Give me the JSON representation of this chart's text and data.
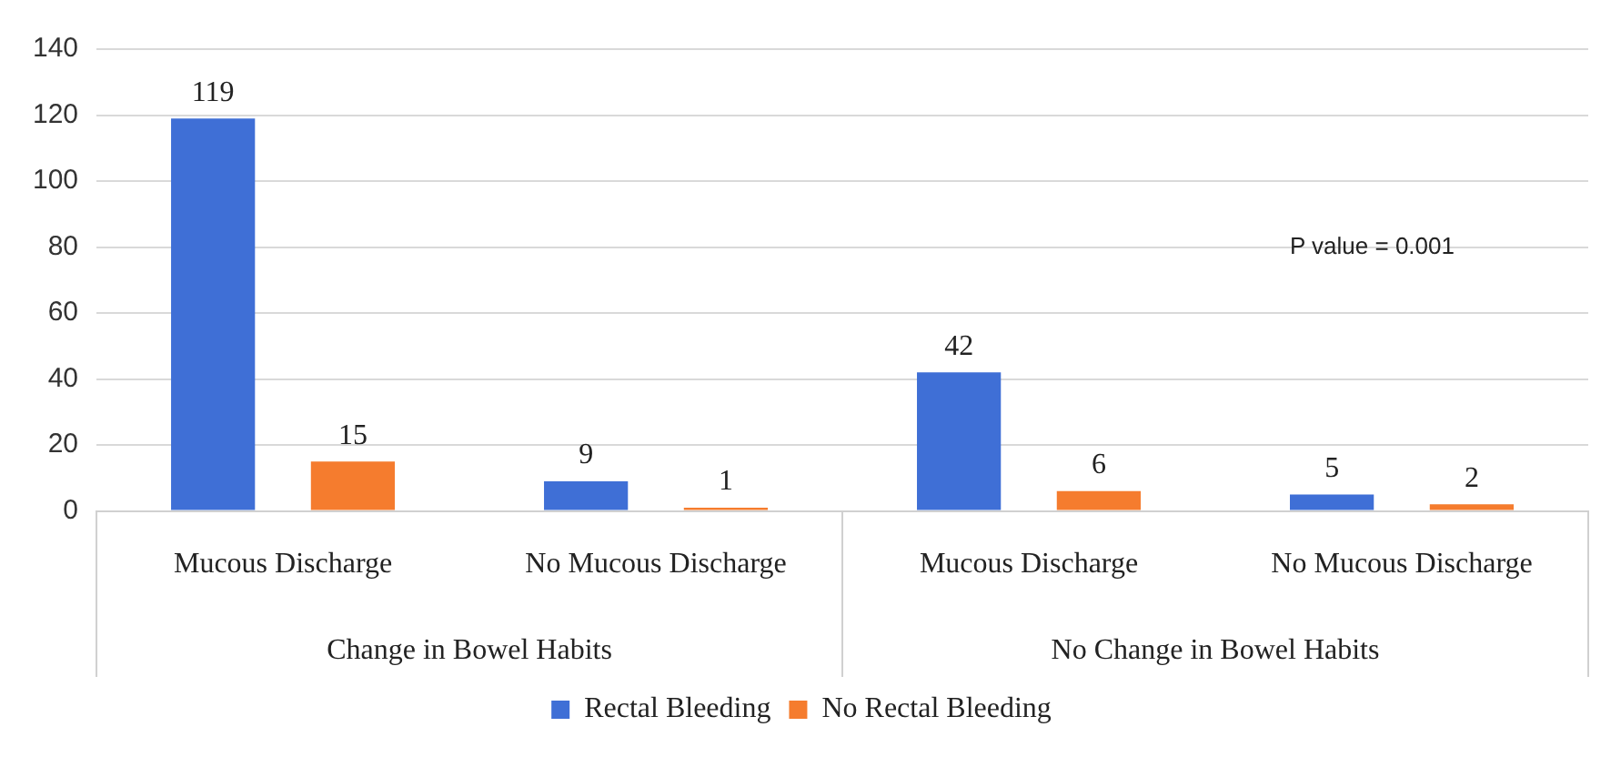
{
  "chart_data": {
    "type": "bar",
    "categories": [
      "Mucous Discharge",
      "No Mucous Discharge",
      "Mucous Discharge",
      "No Mucous Discharge"
    ],
    "series": [
      {
        "name": "Rectal Bleeding",
        "color": "#3f6fd6",
        "values": [
          119,
          9,
          42,
          5
        ]
      },
      {
        "name": "No Rectal Bleeding",
        "color": "#f57c2e",
        "values": [
          15,
          1,
          6,
          2
        ]
      }
    ],
    "ylim": [
      0,
      140
    ],
    "yticks": [
      0,
      20,
      40,
      60,
      80,
      100,
      120,
      140
    ],
    "grid": "y",
    "legend": "bottom",
    "data_labels": true,
    "annotations": [
      "P value = 0.001",
      "Change in Bowel Habits",
      "No Change in Bowel Habits"
    ]
  }
}
